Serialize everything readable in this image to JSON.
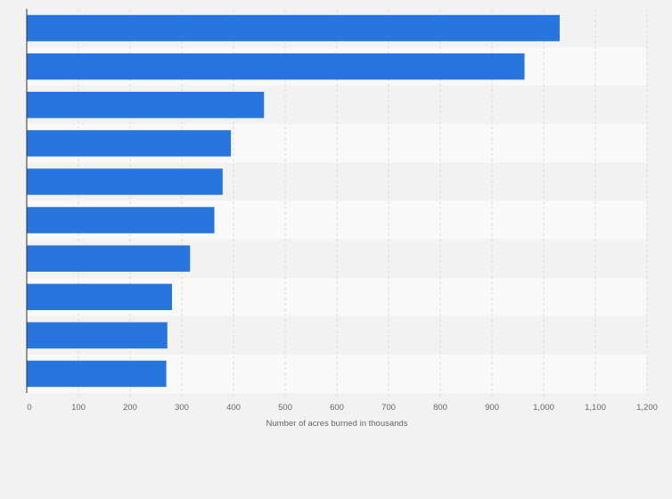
{
  "chart_data": {
    "type": "bar",
    "orientation": "horizontal",
    "title": "",
    "xlabel": "Number of acres burned in thousands",
    "ylabel": "",
    "categories": [
      "",
      "",
      "",
      "",
      "",
      "",
      "",
      "",
      "",
      ""
    ],
    "values": [
      1031,
      963,
      459,
      395,
      379,
      363,
      316,
      281,
      272,
      270
    ],
    "xlim": [
      0,
      1200
    ],
    "xticks": [
      0,
      100,
      200,
      300,
      400,
      500,
      600,
      700,
      800,
      900,
      1000,
      1100,
      1200
    ],
    "tick_labels": [
      "0",
      "100",
      "200",
      "300",
      "400",
      "500",
      "600",
      "700",
      "800",
      "900",
      "1,000",
      "1,100",
      "1,200"
    ],
    "grid": true,
    "legend": "none",
    "colors": {
      "bar": "#2876dd",
      "background": "#f2f2f2",
      "band_light": "#f9f9f9",
      "band_dark": "#f2f2f2",
      "grid": "#d9d9d9",
      "axis": "#333333",
      "text": "#666666"
    }
  }
}
